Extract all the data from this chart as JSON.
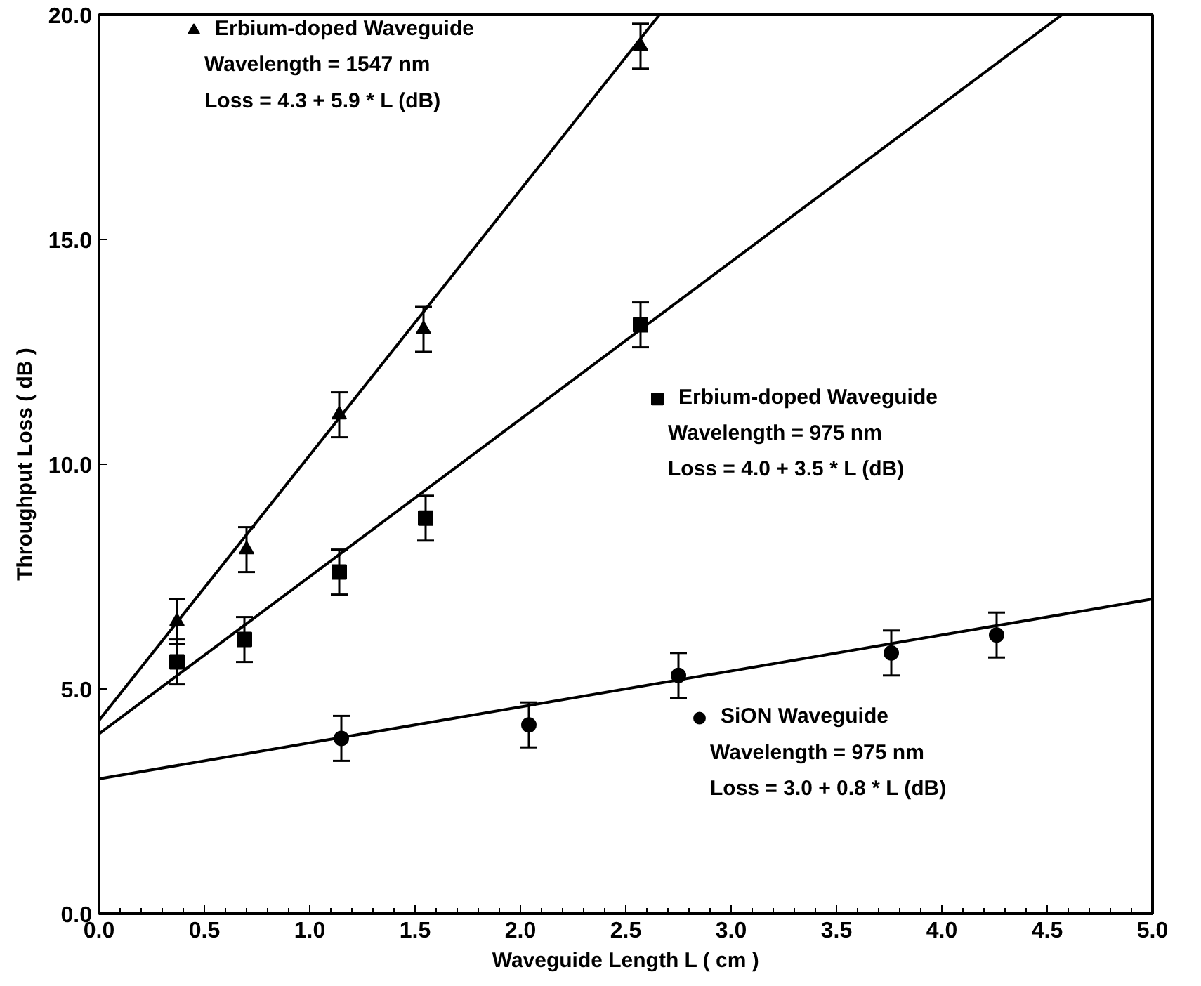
{
  "chart_data": {
    "type": "scatter",
    "xlabel": "Waveguide Length L ( cm )",
    "ylabel": "Throughput Loss ( dB )",
    "xlim": [
      0,
      5
    ],
    "ylim": [
      0,
      20
    ],
    "xticks": [
      {
        "value": 0,
        "label": "0.0"
      },
      {
        "value": 0.5,
        "label": "0.5"
      },
      {
        "value": 1,
        "label": "1.0"
      },
      {
        "value": 1.5,
        "label": "1.5"
      },
      {
        "value": 2,
        "label": "2.0"
      },
      {
        "value": 2.5,
        "label": "2.5"
      },
      {
        "value": 3,
        "label": "3.0"
      },
      {
        "value": 3.5,
        "label": "3.5"
      },
      {
        "value": 4,
        "label": "4.0"
      },
      {
        "value": 4.5,
        "label": "4.5"
      },
      {
        "value": 5,
        "label": "5.0"
      }
    ],
    "yticks": [
      {
        "value": 0,
        "label": "0.0"
      },
      {
        "value": 5,
        "label": "5.0"
      },
      {
        "value": 10,
        "label": "10.0"
      },
      {
        "value": 15,
        "label": "15.0"
      },
      {
        "value": 20,
        "label": "20.0"
      }
    ],
    "grid": false,
    "legend": "top left",
    "series": [
      {
        "name": "Erbium-doped Waveguide",
        "color": "#000000",
        "marker": "triangle",
        "x": [
          0.37,
          0.7,
          1.14,
          1.54,
          2.57
        ],
        "values": [
          6.5,
          8.1,
          11.1,
          13.0,
          19.3
        ],
        "errors": [
          0.5,
          0.5,
          0.5,
          0.5,
          0.5
        ]
      },
      {
        "name": "Erbium-doped Waveguide",
        "color": "#000000",
        "marker": "square",
        "x": [
          0.37,
          0.69,
          1.14,
          1.55,
          2.57
        ],
        "values": [
          5.6,
          6.1,
          7.6,
          8.8,
          13.1
        ],
        "errors": [
          0.5,
          0.5,
          0.5,
          0.5,
          0.5
        ]
      },
      {
        "name": "SiON Waveguide",
        "color": "#000000",
        "marker": "circle",
        "x": [
          1.15,
          2.04,
          2.75,
          3.76,
          4.26
        ],
        "values": [
          3.9,
          4.2,
          5.3,
          5.8,
          6.2
        ],
        "errors": [
          0.5,
          0.5,
          0.5,
          0.5,
          0.5
        ]
      },
      {
        "type": "line",
        "color": "#000000",
        "x": [
          0,
          2.66
        ],
        "values": [
          4.3,
          20.0
        ]
      },
      {
        "type": "line",
        "color": "#000000",
        "x": [
          0,
          4.57
        ],
        "values": [
          4.0,
          20.0
        ]
      },
      {
        "type": "line",
        "color": "#000000",
        "x": [
          0,
          5
        ],
        "values": [
          3.0,
          7.0
        ]
      }
    ],
    "annotations": [
      "Wavelength = 1547 nm",
      "Loss = 4.3 + 5.9 * L (dB)",
      "Wavelength = 975 nm",
      "Loss = 4.0 + 3.5 * L (dB)",
      "Wavelength = 975 nm",
      "Loss = 3.0 + 0.8 * L (dB)"
    ]
  }
}
